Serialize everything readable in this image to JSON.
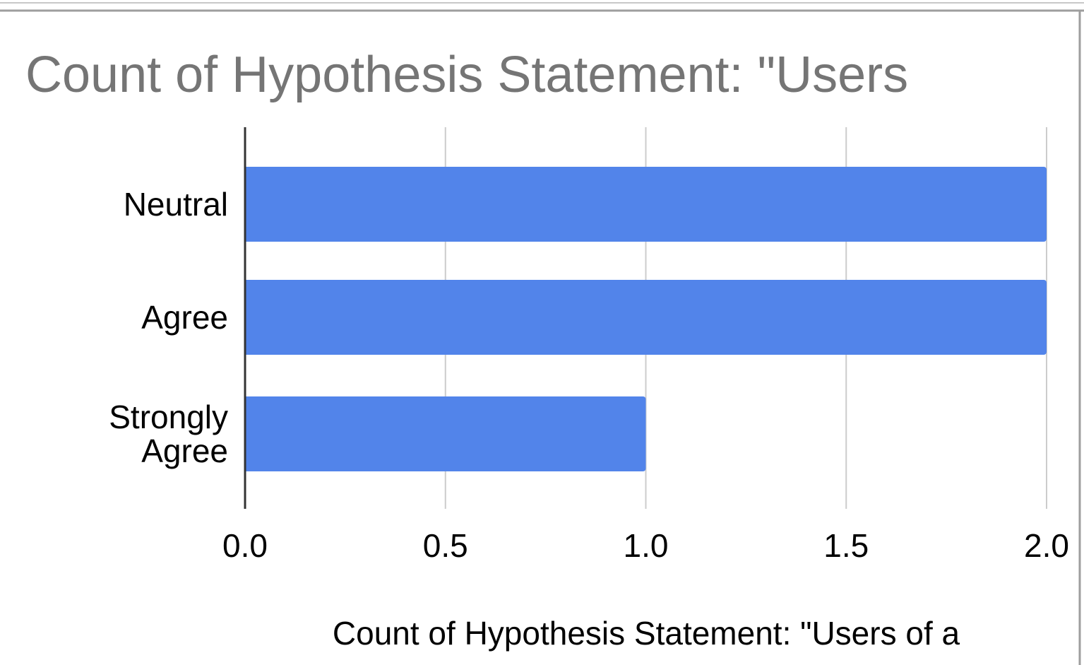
{
  "chart_data": {
    "type": "bar",
    "orientation": "horizontal",
    "title": "Count of Hypothesis Statement: \"Users",
    "xlabel": "Count of Hypothesis Statement: \"Users of a",
    "ylabel": "",
    "categories": [
      [
        "Neutral"
      ],
      [
        "Agree"
      ],
      [
        "Strongly",
        "Agree"
      ]
    ],
    "values": [
      2,
      2,
      1
    ],
    "xlim": [
      0,
      2
    ],
    "xticks": [
      0,
      0.5,
      1,
      1.5,
      2
    ],
    "xtick_labels": [
      "0.0",
      "0.5",
      "1.0",
      "1.5",
      "2.0"
    ],
    "grid": true,
    "legend": "none",
    "bar_color": "#5284ea",
    "grid_color": "#cccccc",
    "title_color": "#757575"
  }
}
